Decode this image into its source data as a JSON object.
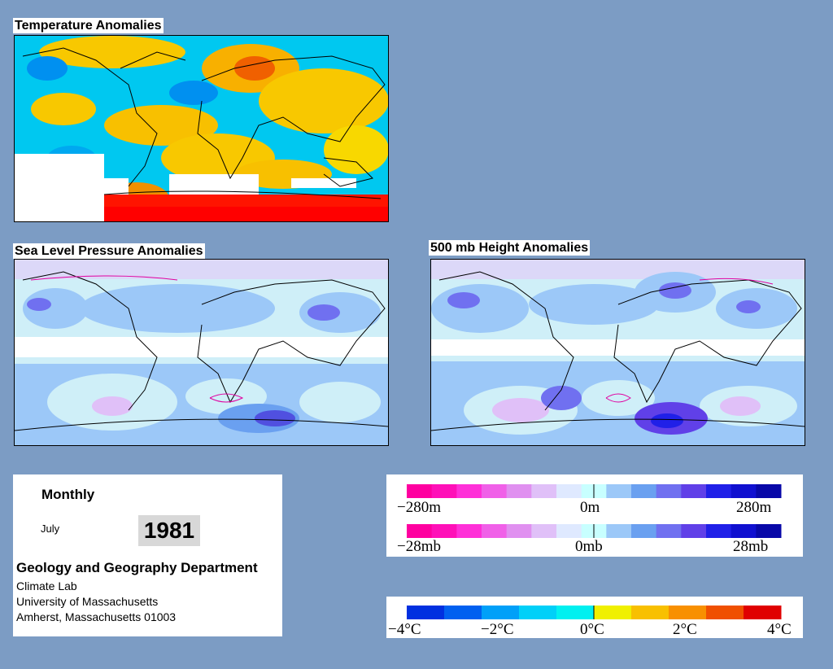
{
  "panels": {
    "temperature": {
      "title": "Temperature Anomalies"
    },
    "slp": {
      "title": "Sea Level Pressure Anomalies"
    },
    "height500": {
      "title": "500 mb Height Anomalies"
    }
  },
  "info": {
    "period": "Monthly",
    "month": "July",
    "year": "1981",
    "department": "Geology and Geography Department",
    "lab": "Climate Lab",
    "university": "University of Massachusetts",
    "city": "Amherst, Massachusetts 01003"
  },
  "height_legend": {
    "labels": [
      "−280m",
      "0m",
      "280m"
    ],
    "colors": [
      "#ff00a0",
      "#ff10b8",
      "#ff30d8",
      "#f060e8",
      "#e090f0",
      "#e0c0f8",
      "#dfe9ff",
      "#c8ffff",
      "#9cc8f8",
      "#6aa0f0",
      "#7070f0",
      "#6040e8",
      "#2020e8",
      "#1010d0",
      "#0808a8"
    ]
  },
  "pressure_legend": {
    "labels": [
      "−28mb",
      "0mb",
      "28mb"
    ],
    "colors": [
      "#ff00a0",
      "#ff10b8",
      "#ff30d8",
      "#f060e8",
      "#e090f0",
      "#e0c0f8",
      "#dfe9ff",
      "#c8ffff",
      "#9cc8f8",
      "#6aa0f0",
      "#7070f0",
      "#6040e8",
      "#2020e8",
      "#1010d0",
      "#0808a8"
    ]
  },
  "temp_legend": {
    "labels": [
      "−4°C",
      "−2°C",
      "0°C",
      "2°C",
      "4°C"
    ],
    "colors": [
      "#0030e0",
      "#0060f0",
      "#00a0f8",
      "#00d0f8",
      "#00f0f0",
      "#f0f000",
      "#f8c000",
      "#f89000",
      "#f05000",
      "#e00000"
    ]
  }
}
